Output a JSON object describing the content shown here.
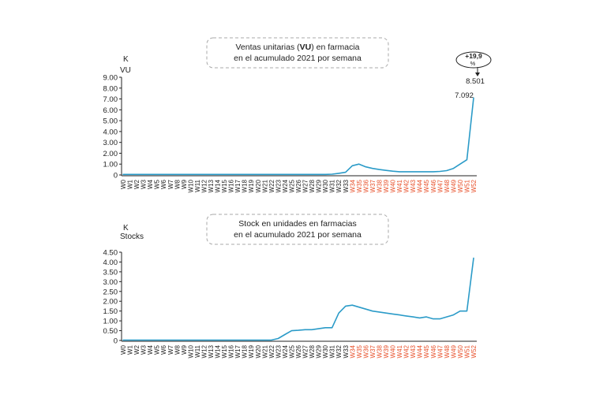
{
  "colors": {
    "line": "#2b9bc8",
    "axis": "#222222",
    "highlight_tick": "#e8502a",
    "box_border": "#aaaaaa",
    "text": "#222222"
  },
  "chart_data": [
    {
      "type": "line",
      "title_lines": [
        "Ventas unitarias (VU) en farmacia",
        "en el acumulado 2021 por semana"
      ],
      "title_bold_word": "VU",
      "unit_label": "K",
      "ylabel": "VU",
      "yticks": [
        "9.00",
        "8.00",
        "7.00",
        "6.00",
        "5.00",
        "4.00",
        "3.00",
        "2.00",
        "1.00",
        "0"
      ],
      "ylim": [
        0,
        9
      ],
      "grid": false,
      "annotation": {
        "badge": "+19,9 %",
        "value_new": "8.501",
        "value_old": "7.092"
      },
      "categories": [
        "W0",
        "W1",
        "W2",
        "W3",
        "W4",
        "W5",
        "W6",
        "W7",
        "W8",
        "W9",
        "W10",
        "W11",
        "W12",
        "W13",
        "W14",
        "W15",
        "W16",
        "W17",
        "W18",
        "W19",
        "W20",
        "W21",
        "W22",
        "W23",
        "W24",
        "W25",
        "W26",
        "W27",
        "W28",
        "W29",
        "W30",
        "W31",
        "W32",
        "W33",
        "W34",
        "W35",
        "W36",
        "W37",
        "W38",
        "W39",
        "W40",
        "W41",
        "W42",
        "W43",
        "W44",
        "W45",
        "W46",
        "W47",
        "W48",
        "W49",
        "W50",
        "W51",
        "W52"
      ],
      "highlight_from": "W34",
      "series": [
        {
          "values": [
            0.05,
            0.05,
            0.05,
            0.05,
            0.05,
            0.05,
            0.05,
            0.05,
            0.05,
            0.05,
            0.05,
            0.05,
            0.05,
            0.05,
            0.05,
            0.05,
            0.05,
            0.05,
            0.05,
            0.05,
            0.05,
            0.05,
            0.05,
            0.05,
            0.05,
            0.05,
            0.05,
            0.05,
            0.05,
            0.05,
            0.05,
            0.07,
            0.15,
            0.25,
            0.85,
            1.0,
            0.75,
            0.6,
            0.5,
            0.42,
            0.35,
            0.3,
            0.3,
            0.3,
            0.3,
            0.3,
            0.3,
            0.33,
            0.4,
            0.6,
            1.0,
            1.4,
            7.092
          ]
        }
      ]
    },
    {
      "type": "line",
      "title_lines": [
        "Stock en unidades en farmacias",
        "en el acumulado 2021 por semana"
      ],
      "unit_label": "K",
      "ylabel": "Stocks",
      "yticks": [
        "4.50",
        "4.00",
        "3.50",
        "3.00",
        "2.50",
        "2.00",
        "1.50",
        "1.00",
        "0.50",
        "0"
      ],
      "ylim": [
        0,
        4.5
      ],
      "grid": false,
      "categories": [
        "W0",
        "W1",
        "W2",
        "W3",
        "W4",
        "W5",
        "W6",
        "W7",
        "W8",
        "W9",
        "W10",
        "W11",
        "W12",
        "W13",
        "W14",
        "W15",
        "W16",
        "W17",
        "W18",
        "W19",
        "W20",
        "W21",
        "W22",
        "W23",
        "W24",
        "W25",
        "W26",
        "W27",
        "W28",
        "W29",
        "W30",
        "W31",
        "W32",
        "W33",
        "W34",
        "W35",
        "W36",
        "W37",
        "W38",
        "W39",
        "W40",
        "W41",
        "W42",
        "W43",
        "W44",
        "W45",
        "W46",
        "W47",
        "W48",
        "W49",
        "W50",
        "W51",
        "W52"
      ],
      "highlight_from": "W34",
      "series": [
        {
          "values": [
            0.02,
            0.02,
            0.02,
            0.02,
            0.02,
            0.02,
            0.02,
            0.02,
            0.02,
            0.02,
            0.02,
            0.02,
            0.02,
            0.02,
            0.02,
            0.02,
            0.02,
            0.02,
            0.02,
            0.02,
            0.02,
            0.02,
            0.02,
            0.1,
            0.3,
            0.5,
            0.52,
            0.55,
            0.55,
            0.6,
            0.65,
            0.65,
            1.4,
            1.75,
            1.8,
            1.7,
            1.6,
            1.5,
            1.45,
            1.4,
            1.35,
            1.3,
            1.25,
            1.2,
            1.15,
            1.2,
            1.1,
            1.1,
            1.2,
            1.3,
            1.5,
            1.5,
            4.2
          ]
        }
      ]
    }
  ]
}
